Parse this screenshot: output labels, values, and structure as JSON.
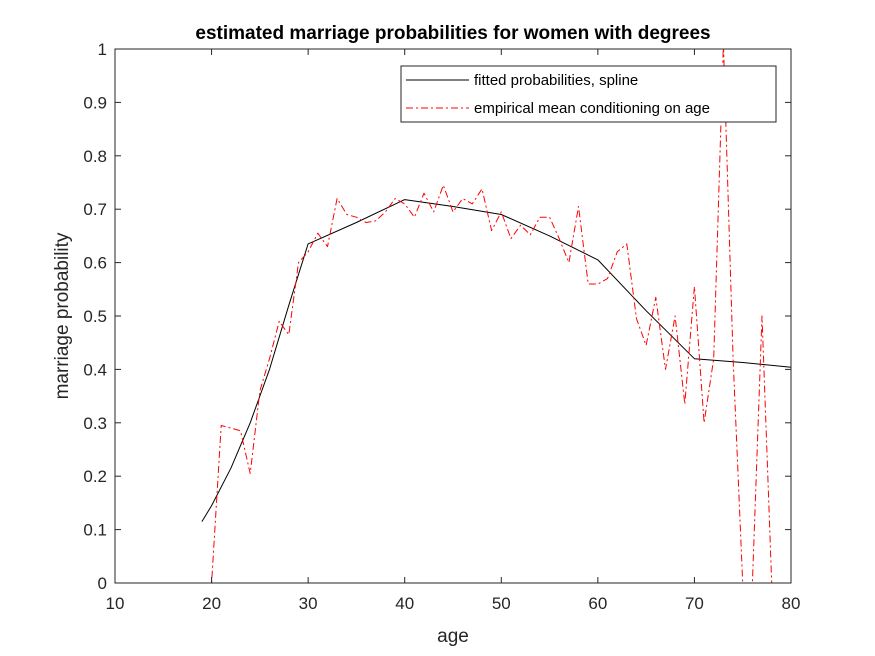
{
  "chart_data": {
    "type": "line",
    "title": "estimated marriage probabilities for women with degrees",
    "xlabel": "age",
    "ylabel": "marriage probability",
    "xlim": [
      10,
      80
    ],
    "ylim": [
      0,
      1
    ],
    "xticks": [
      10,
      20,
      30,
      40,
      50,
      60,
      70,
      80
    ],
    "yticks": [
      0,
      0.1,
      0.2,
      0.3,
      0.4,
      0.5,
      0.6,
      0.7,
      0.8,
      0.9,
      1
    ],
    "ytick_labels": [
      "0",
      "0.1",
      "0.2",
      "0.3",
      "0.4",
      "0.5",
      "0.6",
      "0.7",
      "0.8",
      "0.9",
      "1"
    ],
    "grid": false,
    "legend_position": "top-right",
    "series": [
      {
        "name": "fitted probabilities, spline",
        "color": "#000000",
        "style": "solid",
        "x": [
          19,
          20,
          22,
          24,
          26,
          28,
          30,
          35,
          40,
          45,
          50,
          55,
          60,
          65,
          70,
          75,
          80
        ],
        "y": [
          0.115,
          0.145,
          0.215,
          0.3,
          0.4,
          0.52,
          0.635,
          0.675,
          0.718,
          0.705,
          0.69,
          0.65,
          0.605,
          0.51,
          0.42,
          0.413,
          0.404
        ]
      },
      {
        "name": "empirical mean conditioning on age",
        "color": "#ff0000",
        "style": "dashdot",
        "x": [
          19,
          20,
          21,
          22,
          23,
          24,
          25,
          26,
          27,
          28,
          29,
          30,
          31,
          32,
          33,
          34,
          35,
          36,
          37,
          38,
          39,
          40,
          41,
          42,
          43,
          44,
          45,
          46,
          47,
          48,
          49,
          50,
          51,
          52,
          53,
          54,
          55,
          56,
          57,
          58,
          59,
          60,
          61,
          62,
          63,
          64,
          65,
          66,
          67,
          68,
          69,
          70,
          71,
          72,
          73,
          74,
          75,
          76,
          77,
          78
        ],
        "y": [
          0,
          0,
          0.295,
          0.29,
          0.285,
          0.205,
          0.36,
          0.42,
          0.49,
          0.465,
          0.6,
          0.62,
          0.655,
          0.63,
          0.72,
          0.69,
          0.685,
          0.675,
          0.678,
          0.695,
          0.72,
          0.71,
          0.685,
          0.73,
          0.695,
          0.745,
          0.695,
          0.72,
          0.71,
          0.738,
          0.66,
          0.695,
          0.645,
          0.67,
          0.652,
          0.685,
          0.685,
          0.645,
          0.6,
          0.705,
          0.56,
          0.56,
          0.57,
          0.62,
          0.635,
          0.495,
          0.445,
          0.535,
          0.4,
          0.5,
          0.335,
          0.555,
          0.3,
          0.42,
          1.01,
          0.42,
          0,
          0,
          0.5,
          0
        ]
      }
    ]
  }
}
